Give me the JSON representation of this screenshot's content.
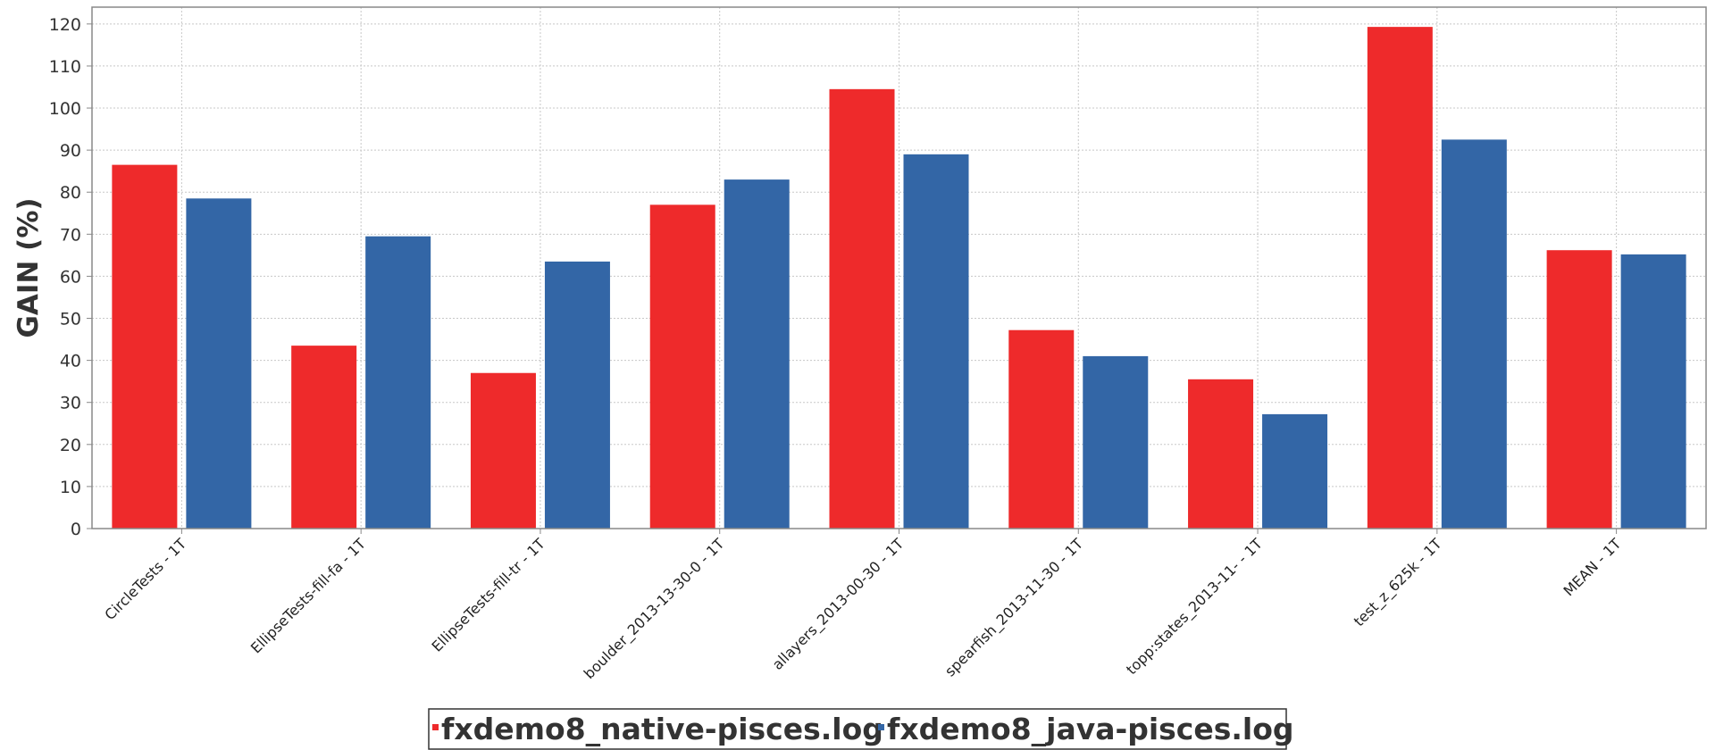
{
  "chart_data": {
    "type": "bar",
    "title": "",
    "xlabel": "",
    "ylabel": "GAIN (%)",
    "ylim": [
      0,
      124
    ],
    "yticks": [
      0,
      10,
      20,
      30,
      40,
      50,
      60,
      70,
      80,
      90,
      100,
      110,
      120
    ],
    "grid": true,
    "legend_position": "bottom",
    "categories": [
      "CircleTests - 1T",
      "EllipseTests-fill-fa - 1T",
      "EllipseTests-fill-tr - 1T",
      "boulder_2013-13-30-0 - 1T",
      "allayers_2013-00-30 - 1T",
      "spearfish_2013-11-30 - 1T",
      "topp:states_2013-11- - 1T",
      "test_z_625k - 1T",
      "MEAN - 1T"
    ],
    "series": [
      {
        "name": "fxdemo8_native-pisces.log",
        "color": "#ee2a2b",
        "values": [
          86.5,
          43.5,
          37,
          77,
          104.5,
          47.2,
          35.5,
          119.3,
          66.2
        ]
      },
      {
        "name": "fxdemo8_java-pisces.log",
        "color": "#3366a6",
        "values": [
          78.5,
          69.5,
          63.5,
          83,
          89,
          41,
          27.2,
          92.5,
          65.2
        ]
      }
    ]
  }
}
